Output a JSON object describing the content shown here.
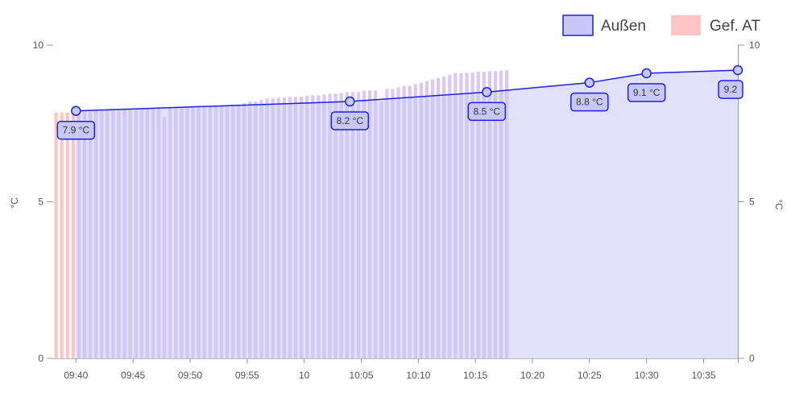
{
  "chart_data": {
    "type": "bar",
    "title": "",
    "ylabel_left": "°C",
    "ylabel_right": "°C",
    "ylim": [
      0,
      10
    ],
    "yticks": [
      0,
      5,
      10
    ],
    "grid": false,
    "legend_position": "top-right",
    "colors": {
      "line": "#1e1ee6",
      "line_fill": "#c8c8f5",
      "bar_a": "#ffc4c4",
      "bar_b": "#c8c8f5"
    },
    "x_labels": [
      "09:40",
      "09:45",
      "09:50",
      "09:55",
      "10",
      "10:05",
      "10:10",
      "10:15",
      "10:20",
      "10:25",
      "10:30",
      "10:35"
    ],
    "x_range": [
      "09:38",
      "10:38"
    ],
    "legend": [
      {
        "label": "Außen",
        "color_fill": "#c8c8f5",
        "color_stroke": "#1e1ee6"
      },
      {
        "label": "Gef. AT",
        "color_fill": "#ffc4c4",
        "color_stroke": "#ffc4c4"
      }
    ],
    "series_line": {
      "name": "Außen",
      "points": [
        {
          "x": "09:40",
          "y": 7.9
        },
        {
          "x": "10:04",
          "y": 8.2
        },
        {
          "x": "10:16",
          "y": 8.5
        },
        {
          "x": "10:25",
          "y": 8.8
        },
        {
          "x": "10:30",
          "y": 9.1
        },
        {
          "x": "10:38",
          "y": 9.2
        }
      ],
      "data_labels": [
        "7.9 °C",
        "8.2 °C",
        "8.5 °C",
        "8.8 °C",
        "9.1 °C",
        "9.2"
      ]
    },
    "series_bars": {
      "name": "Gef. AT",
      "start": "09:38",
      "interval_minutes": 0.5,
      "values": [
        7.85,
        7.85,
        7.85,
        7.87,
        7.88,
        7.9,
        7.9,
        7.92,
        7.92,
        7.93,
        7.93,
        7.95,
        7.95,
        7.95,
        7.96,
        7.97,
        7.97,
        7.98,
        7.98,
        7.7,
        7.99,
        8.0,
        8.0,
        8.0,
        8.02,
        8.03,
        8.05,
        8.05,
        8.06,
        8.08,
        8.08,
        8.1,
        8.1,
        8.15,
        8.2,
        8.2,
        8.25,
        8.3,
        8.3,
        8.32,
        8.33,
        8.35,
        8.35,
        8.36,
        8.38,
        8.4,
        8.4,
        8.42,
        8.45,
        8.45,
        8.47,
        8.5,
        8.5,
        8.5,
        8.55,
        8.55,
        8.55,
        8.2,
        8.6,
        8.6,
        8.65,
        8.7,
        8.7,
        8.75,
        8.8,
        8.85,
        8.9,
        8.95,
        9.0,
        9.05,
        9.1,
        9.1,
        9.12,
        9.12,
        9.15,
        9.15,
        9.17,
        9.17,
        9.18,
        9.2
      ]
    }
  }
}
